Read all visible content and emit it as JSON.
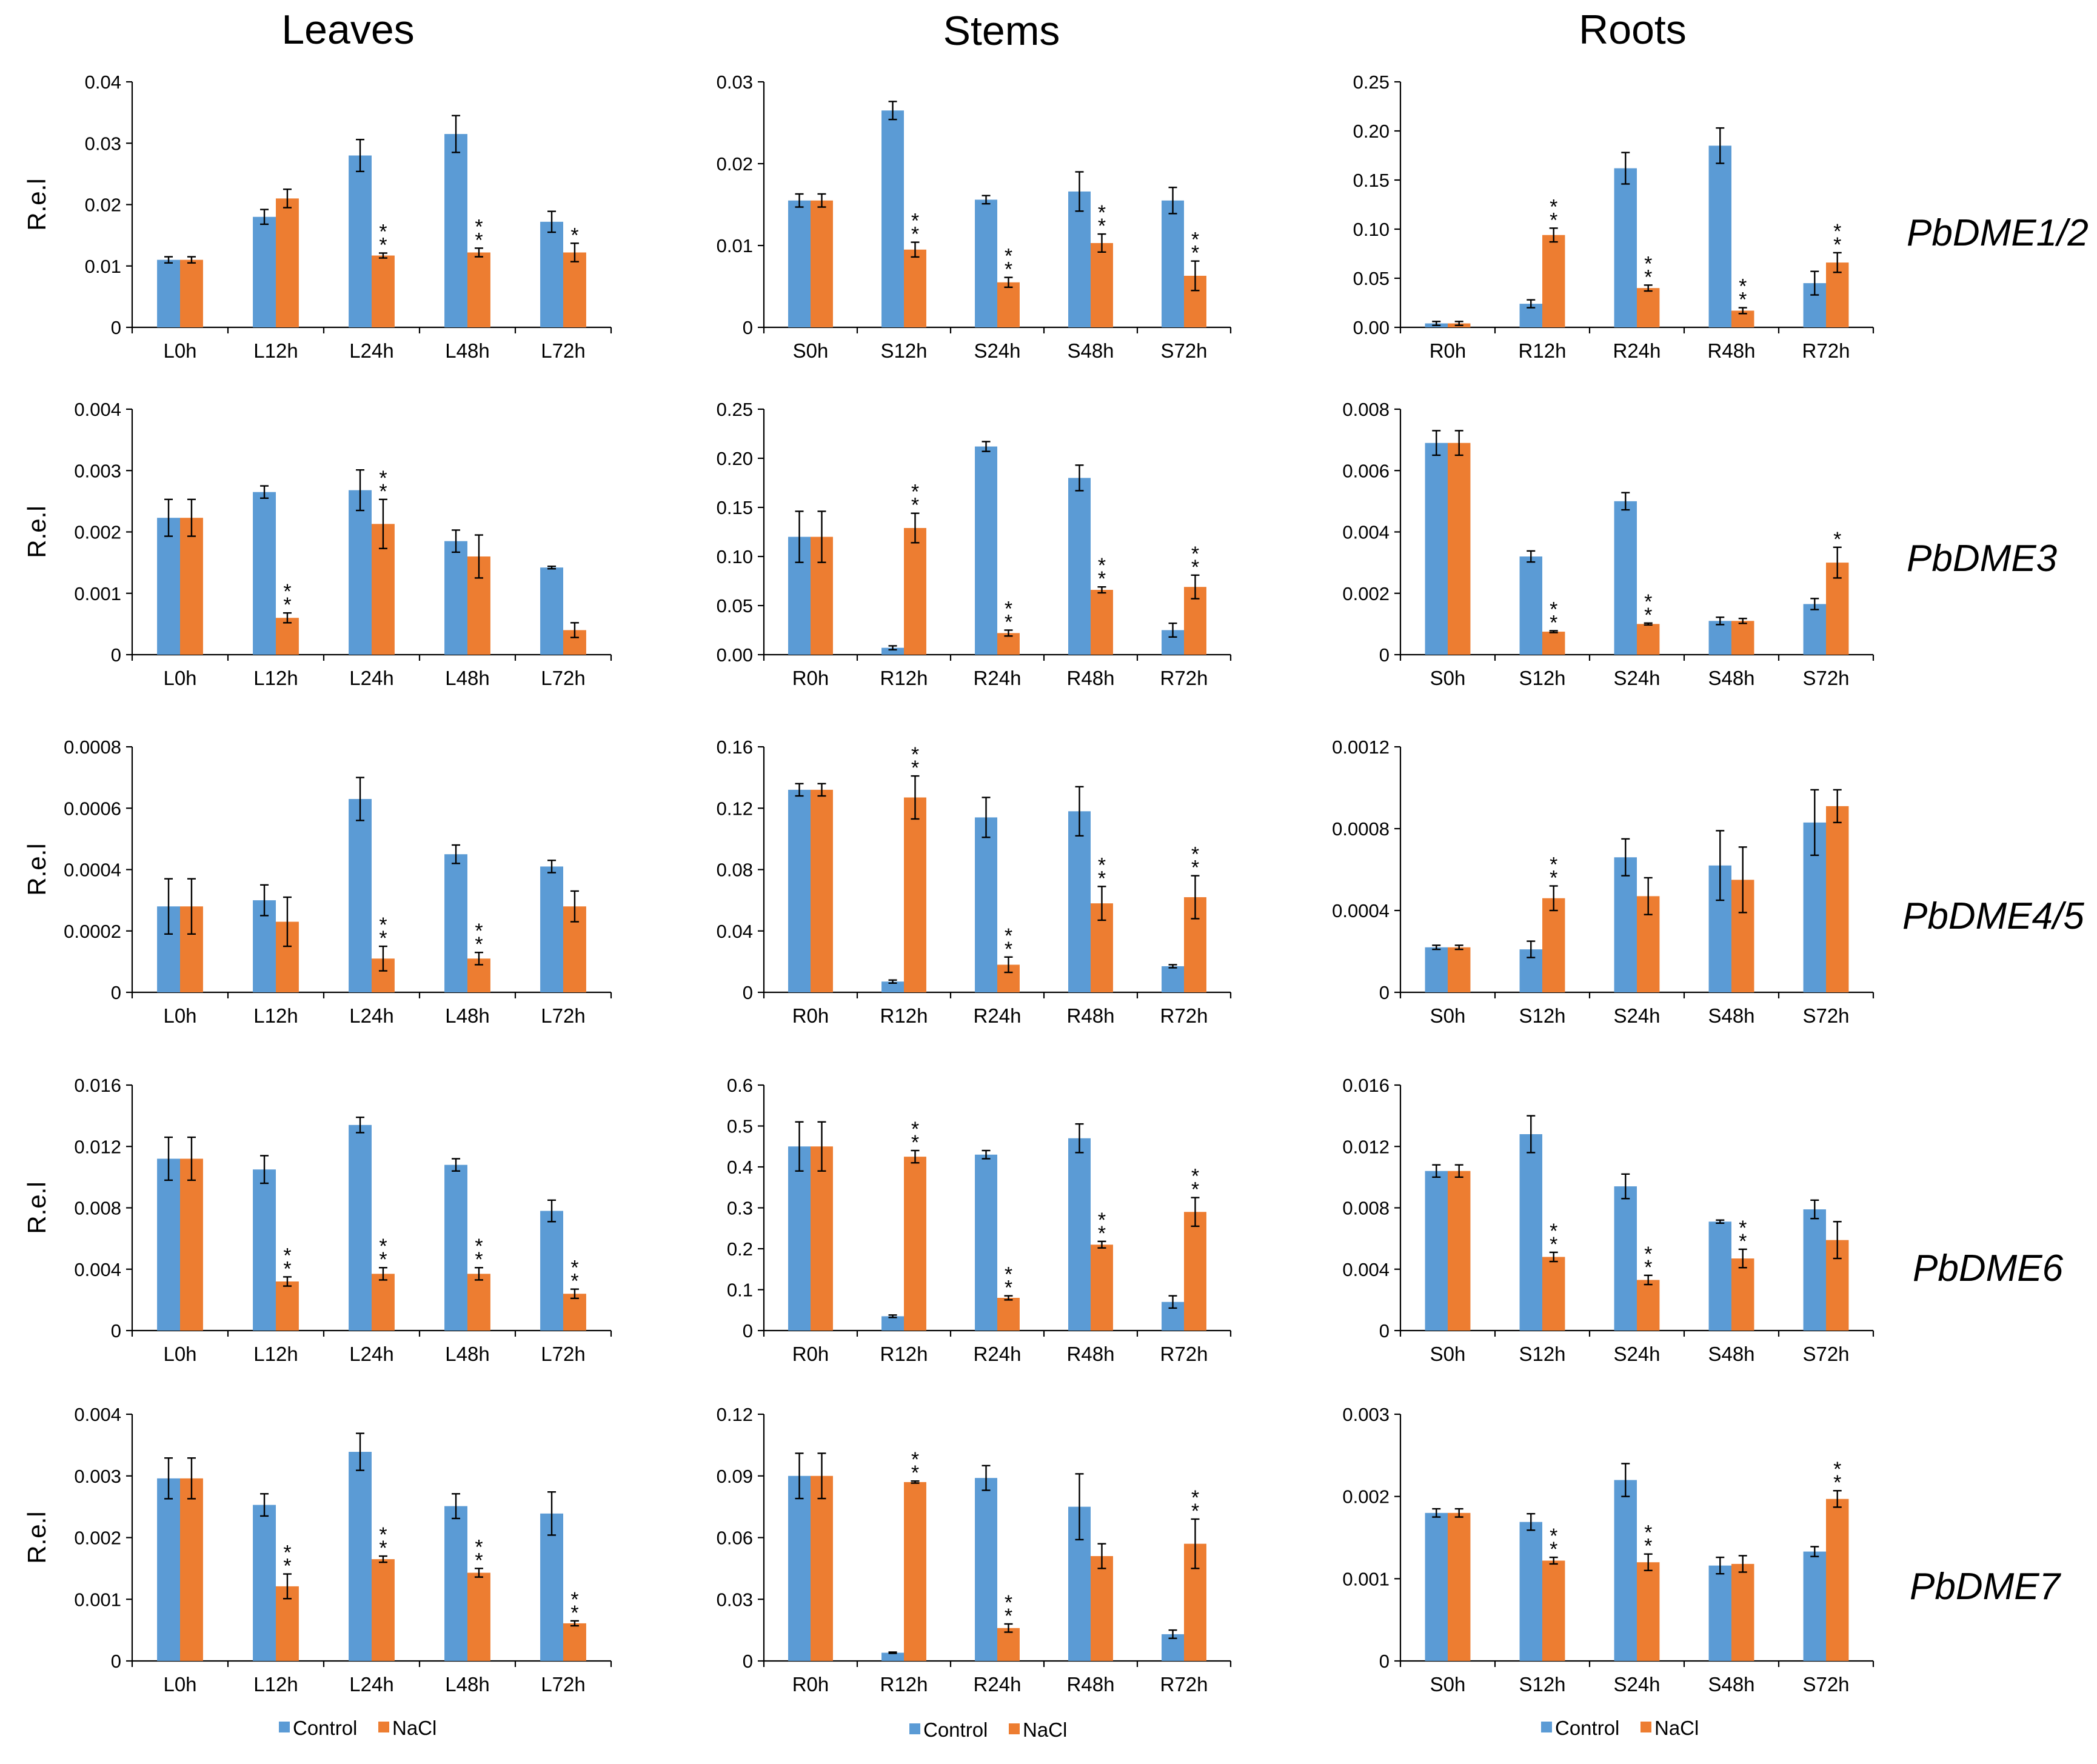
{
  "colors": {
    "control": "#5b9bd5",
    "nacl": "#ed7d31"
  },
  "column_titles": [
    "Leaves",
    "Stems",
    "Roots"
  ],
  "gene_labels": [
    "PbDME1/2",
    "PbDME3",
    "PbDME4/5",
    "PbDME6",
    "PbDME7"
  ],
  "ylabel": "R.e.l",
  "legend": {
    "control": "Control",
    "nacl": "NaCl"
  },
  "chart_data": [
    {
      "id": "r0c0",
      "type": "bar",
      "gene": "PbDME1/2",
      "tissue": "Leaves",
      "ylabel": "R.e.l",
      "categories": [
        "L0h",
        "L12h",
        "L24h",
        "L48h",
        "L72h"
      ],
      "ylim": [
        0,
        0.04
      ],
      "yticks": [
        "0",
        "0.01",
        "0.02",
        "0.03",
        "0.04"
      ],
      "series": [
        {
          "name": "Control",
          "values": [
            0.011,
            0.018,
            0.028,
            0.0315,
            0.0172
          ],
          "errors": [
            0.0005,
            0.0012,
            0.0026,
            0.003,
            0.0017
          ]
        },
        {
          "name": "NaCl",
          "values": [
            0.011,
            0.021,
            0.0117,
            0.0122,
            0.0122
          ],
          "errors": [
            0.0005,
            0.0015,
            0.0004,
            0.0007,
            0.0015
          ]
        }
      ],
      "significance": [
        "",
        "",
        "**",
        "**",
        "*"
      ]
    },
    {
      "id": "r0c1",
      "type": "bar",
      "gene": "PbDME1/2",
      "tissue": "Stems",
      "categories": [
        "S0h",
        "S12h",
        "S24h",
        "S48h",
        "S72h"
      ],
      "ylim": [
        0,
        0.03
      ],
      "yticks": [
        "0",
        "0.01",
        "0.02",
        "0.03"
      ],
      "series": [
        {
          "name": "Control",
          "values": [
            0.0155,
            0.0265,
            0.0156,
            0.0166,
            0.0155
          ],
          "errors": [
            0.0008,
            0.0011,
            0.0005,
            0.0024,
            0.0016
          ]
        },
        {
          "name": "NaCl",
          "values": [
            0.0155,
            0.0095,
            0.0055,
            0.0103,
            0.0063
          ],
          "errors": [
            0.0008,
            0.0009,
            0.0006,
            0.0011,
            0.0018
          ]
        }
      ],
      "significance": [
        "",
        "**",
        "**",
        "**",
        "**"
      ]
    },
    {
      "id": "r0c2",
      "type": "bar",
      "gene": "PbDME1/2",
      "tissue": "Roots",
      "categories": [
        "R0h",
        "R12h",
        "R24h",
        "R48h",
        "R72h"
      ],
      "ylim": [
        0,
        0.25
      ],
      "yticks": [
        "0.00",
        "0.05",
        "0.10",
        "0.15",
        "0.20",
        "0.25"
      ],
      "series": [
        {
          "name": "Control",
          "values": [
            0.004,
            0.024,
            0.162,
            0.185,
            0.045
          ],
          "errors": [
            0.002,
            0.004,
            0.016,
            0.018,
            0.012
          ]
        },
        {
          "name": "NaCl",
          "values": [
            0.004,
            0.094,
            0.04,
            0.017,
            0.066
          ],
          "errors": [
            0.002,
            0.007,
            0.003,
            0.003,
            0.01
          ]
        }
      ],
      "significance": [
        "",
        "**",
        "**",
        "**",
        "**"
      ]
    },
    {
      "id": "r1c0",
      "type": "bar",
      "gene": "PbDME3",
      "tissue": "Leaves",
      "ylabel": "R.e.l",
      "categories": [
        "L0h",
        "L12h",
        "L24h",
        "L48h",
        "L72h"
      ],
      "ylim": [
        0,
        0.004
      ],
      "yticks": [
        "0",
        "0.001",
        "0.002",
        "0.003",
        "0.004"
      ],
      "series": [
        {
          "name": "Control",
          "values": [
            0.00223,
            0.00265,
            0.00268,
            0.00185,
            0.00142
          ],
          "errors": [
            0.0003,
            0.0001,
            0.00033,
            0.00018,
            2e-05
          ]
        },
        {
          "name": "NaCl",
          "values": [
            0.00223,
            0.0006,
            0.00213,
            0.0016,
            0.0004
          ],
          "errors": [
            0.0003,
            8e-05,
            0.0004,
            0.00035,
            0.00012
          ]
        }
      ],
      "significance": [
        "",
        "**",
        "**",
        "",
        ""
      ]
    },
    {
      "id": "r1c1",
      "type": "bar",
      "gene": "PbDME3",
      "tissue": "Stems",
      "categories": [
        "R0h",
        "R12h",
        "R24h",
        "R48h",
        "R72h"
      ],
      "ylim": [
        0,
        0.25
      ],
      "yticks": [
        "0.00",
        "0.05",
        "0.10",
        "0.15",
        "0.20",
        "0.25"
      ],
      "series": [
        {
          "name": "Control",
          "values": [
            0.12,
            0.007,
            0.212,
            0.18,
            0.025
          ],
          "errors": [
            0.026,
            0.002,
            0.005,
            0.013,
            0.007
          ]
        },
        {
          "name": "NaCl",
          "values": [
            0.12,
            0.129,
            0.022,
            0.066,
            0.069
          ],
          "errors": [
            0.026,
            0.015,
            0.003,
            0.003,
            0.012
          ]
        }
      ],
      "significance": [
        "",
        "**",
        "**",
        "**",
        "**"
      ]
    },
    {
      "id": "r1c2",
      "type": "bar",
      "gene": "PbDME3",
      "tissue": "Roots",
      "categories": [
        "S0h",
        "S12h",
        "S24h",
        "S48h",
        "S72h"
      ],
      "ylim": [
        0,
        0.008
      ],
      "yticks": [
        "0",
        "0.002",
        "0.004",
        "0.006",
        "0.008"
      ],
      "series": [
        {
          "name": "Control",
          "values": [
            0.0069,
            0.0032,
            0.005,
            0.0011,
            0.00165
          ],
          "errors": [
            0.0004,
            0.00018,
            0.00028,
            0.00012,
            0.00018
          ]
        },
        {
          "name": "NaCl",
          "values": [
            0.0069,
            0.00075,
            0.001,
            0.0011,
            0.003
          ],
          "errors": [
            0.0004,
            3e-05,
            3e-05,
            8e-05,
            0.0005
          ]
        }
      ],
      "significance": [
        "",
        "**",
        "**",
        "",
        "*"
      ]
    },
    {
      "id": "r2c0",
      "type": "bar",
      "gene": "PbDME4/5",
      "tissue": "Leaves",
      "ylabel": "R.e.l",
      "categories": [
        "L0h",
        "L12h",
        "L24h",
        "L48h",
        "L72h"
      ],
      "ylim": [
        0,
        0.0008
      ],
      "yticks": [
        "0",
        "0.0002",
        "0.0004",
        "0.0006",
        "0.0008"
      ],
      "series": [
        {
          "name": "Control",
          "values": [
            0.00028,
            0.0003,
            0.00063,
            0.00045,
            0.00041
          ],
          "errors": [
            9e-05,
            5e-05,
            7e-05,
            3e-05,
            2e-05
          ]
        },
        {
          "name": "NaCl",
          "values": [
            0.00028,
            0.00023,
            0.00011,
            0.00011,
            0.00028
          ],
          "errors": [
            9e-05,
            8e-05,
            4e-05,
            2e-05,
            5e-05
          ]
        }
      ],
      "significance": [
        "",
        "",
        "**",
        "**",
        ""
      ]
    },
    {
      "id": "r2c1",
      "type": "bar",
      "gene": "PbDME4/5",
      "tissue": "Stems",
      "categories": [
        "R0h",
        "R12h",
        "R24h",
        "R48h",
        "R72h"
      ],
      "ylim": [
        0,
        0.16
      ],
      "yticks": [
        "0",
        "0.04",
        "0.08",
        "0.12",
        "0.16"
      ],
      "series": [
        {
          "name": "Control",
          "values": [
            0.132,
            0.007,
            0.114,
            0.118,
            0.017
          ],
          "errors": [
            0.004,
            0.001,
            0.013,
            0.016,
            0.001
          ]
        },
        {
          "name": "NaCl",
          "values": [
            0.132,
            0.127,
            0.018,
            0.058,
            0.062
          ],
          "errors": [
            0.004,
            0.014,
            0.005,
            0.011,
            0.014
          ]
        }
      ],
      "significance": [
        "",
        "**",
        "**",
        "**",
        "**"
      ]
    },
    {
      "id": "r2c2",
      "type": "bar",
      "gene": "PbDME4/5",
      "tissue": "Roots",
      "categories": [
        "S0h",
        "S12h",
        "S24h",
        "S48h",
        "S72h"
      ],
      "ylim": [
        0,
        0.0012
      ],
      "yticks": [
        "0",
        "0.0004",
        "0.0008",
        "0.0012"
      ],
      "series": [
        {
          "name": "Control",
          "values": [
            0.00022,
            0.00021,
            0.00066,
            0.00062,
            0.00083
          ],
          "errors": [
            1e-05,
            4e-05,
            9e-05,
            0.00017,
            0.00016
          ]
        },
        {
          "name": "NaCl",
          "values": [
            0.00022,
            0.00046,
            0.00047,
            0.00055,
            0.00091
          ],
          "errors": [
            1e-05,
            6e-05,
            9e-05,
            0.00016,
            8e-05
          ]
        }
      ],
      "significance": [
        "",
        "**",
        "",
        "",
        ""
      ]
    },
    {
      "id": "r3c0",
      "type": "bar",
      "gene": "PbDME6",
      "tissue": "Leaves",
      "ylabel": "R.e.l",
      "categories": [
        "L0h",
        "L12h",
        "L24h",
        "L48h",
        "L72h"
      ],
      "ylim": [
        0,
        0.016
      ],
      "yticks": [
        "0",
        "0.004",
        "0.008",
        "0.012",
        "0.016"
      ],
      "series": [
        {
          "name": "Control",
          "values": [
            0.0112,
            0.0105,
            0.0134,
            0.0108,
            0.0078
          ],
          "errors": [
            0.0014,
            0.0009,
            0.0005,
            0.0004,
            0.0007
          ]
        },
        {
          "name": "NaCl",
          "values": [
            0.0112,
            0.0032,
            0.0037,
            0.0037,
            0.0024
          ],
          "errors": [
            0.0014,
            0.0003,
            0.0004,
            0.0004,
            0.0003
          ]
        }
      ],
      "significance": [
        "",
        "**",
        "**",
        "**",
        "**"
      ]
    },
    {
      "id": "r3c1",
      "type": "bar",
      "gene": "PbDME6",
      "tissue": "Stems",
      "categories": [
        "R0h",
        "R12h",
        "R24h",
        "R48h",
        "R72h"
      ],
      "ylim": [
        0,
        0.6
      ],
      "yticks": [
        "0",
        "0.1",
        "0.2",
        "0.3",
        "0.4",
        "0.5",
        "0.6"
      ],
      "series": [
        {
          "name": "Control",
          "values": [
            0.45,
            0.035,
            0.43,
            0.47,
            0.07
          ],
          "errors": [
            0.06,
            0.003,
            0.01,
            0.035,
            0.015
          ]
        },
        {
          "name": "NaCl",
          "values": [
            0.45,
            0.425,
            0.08,
            0.21,
            0.29
          ],
          "errors": [
            0.06,
            0.015,
            0.005,
            0.008,
            0.035
          ]
        }
      ],
      "significance": [
        "",
        "**",
        "**",
        "**",
        "**"
      ]
    },
    {
      "id": "r3c2",
      "type": "bar",
      "gene": "PbDME6",
      "tissue": "Roots",
      "categories": [
        "S0h",
        "S12h",
        "S24h",
        "S48h",
        "S72h"
      ],
      "ylim": [
        0,
        0.016
      ],
      "yticks": [
        "0",
        "0.004",
        "0.008",
        "0.012",
        "0.016"
      ],
      "series": [
        {
          "name": "Control",
          "values": [
            0.0104,
            0.0128,
            0.0094,
            0.0071,
            0.0079
          ],
          "errors": [
            0.0004,
            0.0012,
            0.0008,
            0.0001,
            0.0006
          ]
        },
        {
          "name": "NaCl",
          "values": [
            0.0104,
            0.0048,
            0.0033,
            0.0047,
            0.0059
          ],
          "errors": [
            0.0004,
            0.0003,
            0.0003,
            0.0006,
            0.0012
          ]
        }
      ],
      "significance": [
        "",
        "**",
        "**",
        "**",
        ""
      ]
    },
    {
      "id": "r4c0",
      "type": "bar",
      "gene": "PbDME7",
      "tissue": "Leaves",
      "ylabel": "R.e.l",
      "categories": [
        "L0h",
        "L12h",
        "L24h",
        "L48h",
        "L72h"
      ],
      "ylim": [
        0,
        0.004
      ],
      "yticks": [
        "0",
        "0.001",
        "0.002",
        "0.003",
        "0.004"
      ],
      "series": [
        {
          "name": "Control",
          "values": [
            0.00296,
            0.00253,
            0.00339,
            0.00251,
            0.00239
          ],
          "errors": [
            0.00033,
            0.00018,
            0.0003,
            0.0002,
            0.00035
          ]
        },
        {
          "name": "NaCl",
          "values": [
            0.00296,
            0.00121,
            0.00165,
            0.00143,
            0.00061
          ],
          "errors": [
            0.00033,
            0.0002,
            5e-05,
            7e-05,
            4e-05
          ]
        }
      ],
      "significance": [
        "",
        "**",
        "**",
        "**",
        "**"
      ]
    },
    {
      "id": "r4c1",
      "type": "bar",
      "gene": "PbDME7",
      "tissue": "Stems",
      "categories": [
        "R0h",
        "R12h",
        "R24h",
        "R48h",
        "R72h"
      ],
      "ylim": [
        0,
        0.12
      ],
      "yticks": [
        "0",
        "0.03",
        "0.06",
        "0.09",
        "0.12"
      ],
      "series": [
        {
          "name": "Control",
          "values": [
            0.09,
            0.004,
            0.089,
            0.075,
            0.013
          ],
          "errors": [
            0.011,
            0.0003,
            0.006,
            0.016,
            0.002
          ]
        },
        {
          "name": "NaCl",
          "values": [
            0.09,
            0.087,
            0.016,
            0.051,
            0.057
          ],
          "errors": [
            0.011,
            0.0005,
            0.002,
            0.006,
            0.012
          ]
        }
      ],
      "significance": [
        "",
        "**",
        "**",
        "",
        "**"
      ]
    },
    {
      "id": "r4c2",
      "type": "bar",
      "gene": "PbDME7",
      "tissue": "Roots",
      "categories": [
        "S0h",
        "S12h",
        "S24h",
        "S48h",
        "S72h"
      ],
      "ylim": [
        0,
        0.003
      ],
      "yticks": [
        "0",
        "0.001",
        "0.002",
        "0.003"
      ],
      "series": [
        {
          "name": "Control",
          "values": [
            0.0018,
            0.00169,
            0.0022,
            0.00116,
            0.00133
          ],
          "errors": [
            5e-05,
            0.0001,
            0.0002,
            0.0001,
            6e-05
          ]
        },
        {
          "name": "NaCl",
          "values": [
            0.0018,
            0.00122,
            0.0012,
            0.00118,
            0.00197
          ],
          "errors": [
            5e-05,
            4e-05,
            0.0001,
            0.0001,
            0.0001
          ]
        }
      ],
      "significance": [
        "",
        "**",
        "**",
        "",
        "**"
      ]
    }
  ]
}
